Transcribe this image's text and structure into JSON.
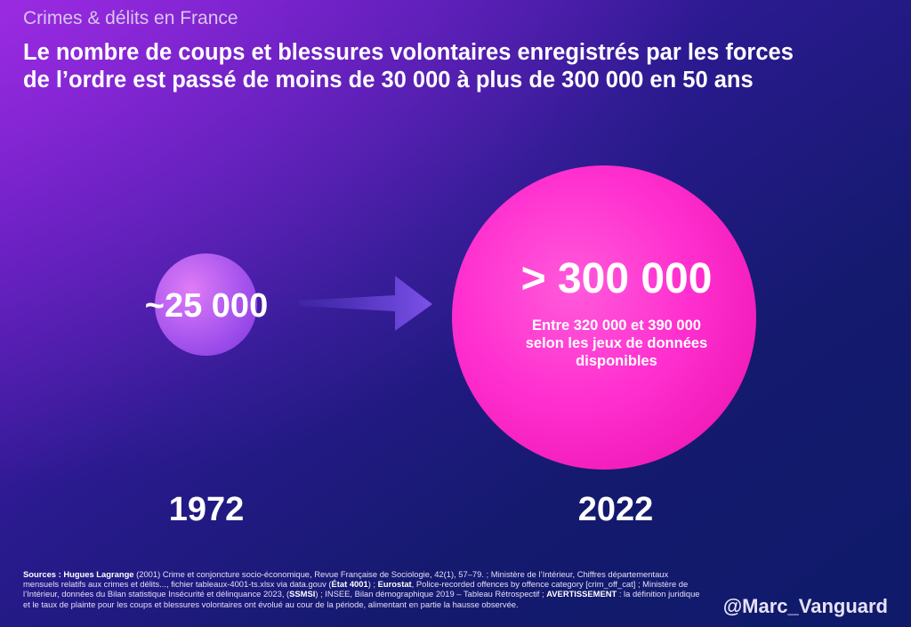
{
  "header": {
    "kicker": "Crimes & délits en France",
    "title_line1": "Le nombre de coups et blessures volontaires enregistrés par les forces",
    "title_line2": "de l’ordre est passé de moins de 30 000 à plus de 300 000 en 50 ans"
  },
  "chart_data": {
    "type": "bubble",
    "title": "Le nombre de coups et blessures volontaires enregistrés par les forces de l’ordre est passé de moins de 30 000 à plus de 300 000 en 50 ans",
    "categories": [
      "1972",
      "2022"
    ],
    "values": [
      25000,
      300000
    ],
    "value_labels": [
      "~25 000",
      "> 300 000"
    ],
    "annotations": [
      "Entre 320 000 et 390 000 selon les jeux de données disponibles"
    ]
  },
  "colors": {
    "small_bubble": "#b15cf0",
    "big_bubble": "#ff2fcf",
    "arrow": "#7a4fe0"
  },
  "footer": {
    "sources_segments": [
      {
        "b": true,
        "t": "Sources : Hugues Lagrange"
      },
      {
        "b": false,
        "t": " (2001) Crime et conjoncture socio-économique, Revue Française de Sociologie, 42(1), 57–79. ; Ministère de l’Intérieur, Chiffres départementaux mensuels relatifs aux crimes et délits..., fichier tableaux-4001-ts.xlsx via data.gouv ("
      },
      {
        "b": true,
        "t": "État 4001"
      },
      {
        "b": false,
        "t": ") ; "
      },
      {
        "b": true,
        "t": "Eurostat"
      },
      {
        "b": false,
        "t": ", Police-recorded offences by offence category [crim_off_cat] ; Ministère de l’Intérieur, données du Bilan statistique Insécurité et délinquance 2023, ("
      },
      {
        "b": true,
        "t": "SSMSI"
      },
      {
        "b": false,
        "t": ") ; INSEE, Bilan démographique 2019 – Tableau Rétrospectif ; "
      },
      {
        "b": true,
        "t": "AVERTISSEMENT"
      },
      {
        "b": false,
        "t": " : la définition juridique et le taux de plainte pour les coups et blessures volontaires ont évolué au cour de la période, alimentant en partie la hausse observée."
      }
    ],
    "handle": "@Marc_Vanguard"
  }
}
